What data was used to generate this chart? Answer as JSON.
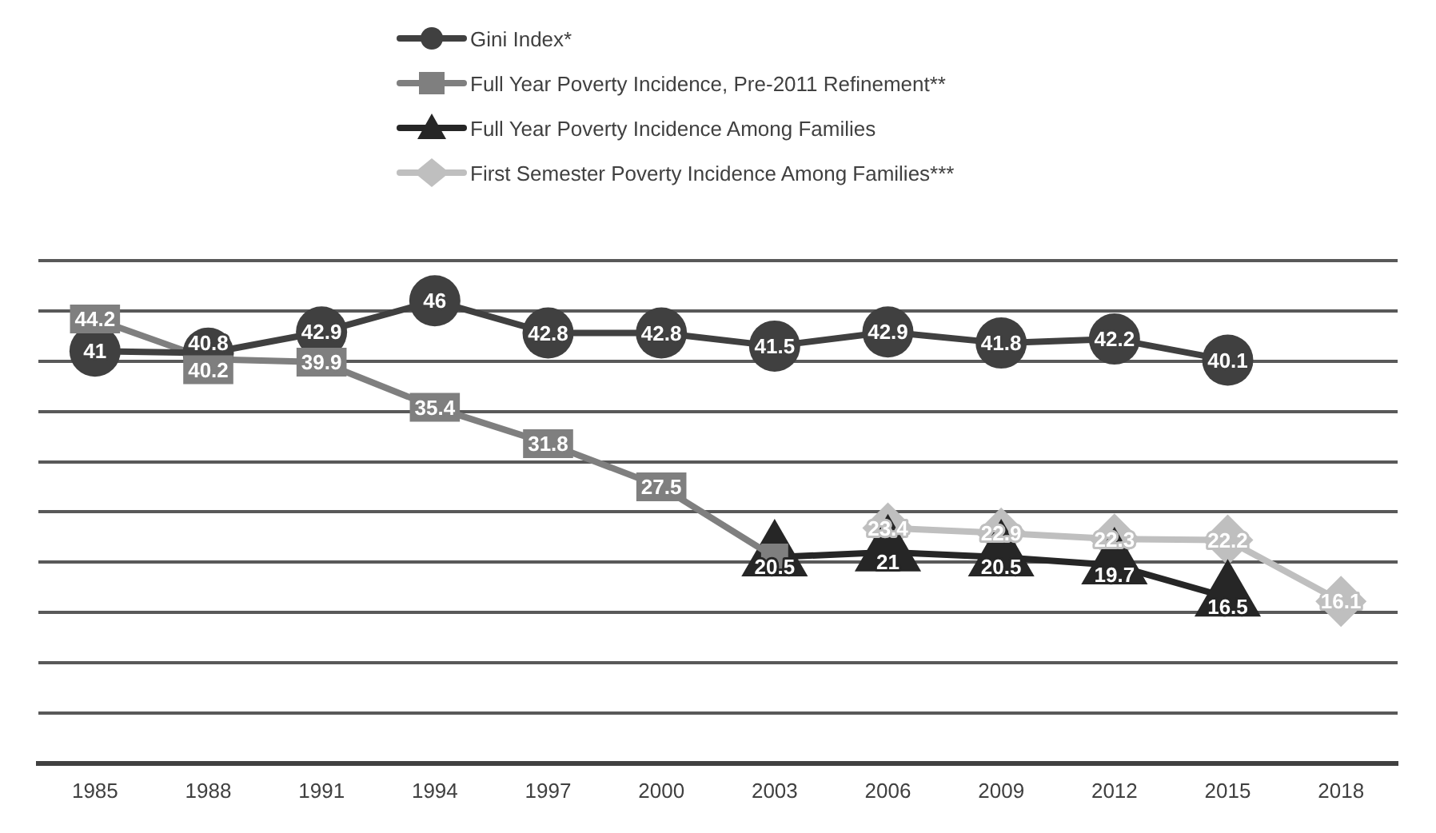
{
  "chart_data": {
    "type": "line",
    "categories": [
      "1985",
      "1988",
      "1991",
      "1994",
      "1997",
      "2000",
      "2003",
      "2006",
      "2009",
      "2012",
      "2015",
      "2018"
    ],
    "series": [
      {
        "name": "Gini Index*",
        "color": "#404040",
        "marker": "circle",
        "values": [
          41,
          40.8,
          42.9,
          46,
          42.8,
          42.8,
          41.5,
          42.9,
          41.8,
          42.2,
          40.1,
          null
        ],
        "value_labels": [
          "41",
          "40.8",
          "42.9",
          "46",
          "42.8",
          "42.8",
          "41.5",
          "42.9",
          "41.8",
          "42.2",
          "40.1",
          null
        ]
      },
      {
        "name": "Full Year Poverty Incidence, Pre-2011 Refinement**",
        "color": "#7f7f7f",
        "marker": "square",
        "values": [
          44.2,
          40.2,
          39.9,
          35.4,
          31.8,
          27.5,
          20.5,
          null,
          null,
          null,
          null,
          null
        ],
        "value_labels": [
          "44.2",
          "40.2",
          "39.9",
          "35.4",
          "31.8",
          "27.5",
          null,
          null,
          null,
          null,
          null,
          null
        ]
      },
      {
        "name": "Full Year Poverty Incidence Among Families",
        "color": "#262626",
        "marker": "triangle",
        "values": [
          null,
          null,
          null,
          null,
          null,
          null,
          20.5,
          21,
          20.5,
          19.7,
          16.5,
          null
        ],
        "value_labels": [
          null,
          null,
          null,
          null,
          null,
          null,
          "20.5",
          "21",
          "20.5",
          "19.7",
          "16.5",
          null
        ]
      },
      {
        "name": "First Semester Poverty Incidence Among Families***",
        "color": "#bfbfbf",
        "marker": "diamond",
        "values": [
          null,
          null,
          null,
          null,
          null,
          null,
          null,
          23.4,
          22.9,
          22.3,
          22.2,
          16.1
        ],
        "value_labels": [
          null,
          null,
          null,
          null,
          null,
          null,
          null,
          "23.4",
          "22.9",
          "22.3",
          "22.2",
          "16.1"
        ]
      }
    ],
    "ylim": [
      0,
      50
    ],
    "yticks": [
      {
        "value": 0,
        "label": null
      },
      {
        "value": 5,
        "label": null
      },
      {
        "value": 10,
        "label": null
      },
      {
        "value": 15,
        "label": null
      },
      {
        "value": 20,
        "label": null
      },
      {
        "value": 25,
        "label": null
      },
      {
        "value": 30,
        "label": null
      },
      {
        "value": 35,
        "label": null
      },
      {
        "value": 40,
        "label": null
      },
      {
        "value": 45,
        "label": null
      },
      {
        "value": 50,
        "label": null
      }
    ],
    "tick_labels": "x",
    "grid": "y",
    "legend": "top",
    "line_style": "solid"
  }
}
